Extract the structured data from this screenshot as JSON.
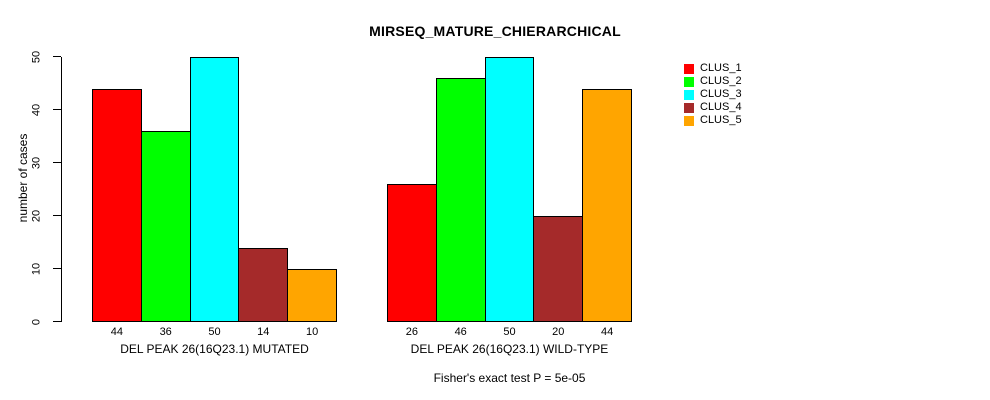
{
  "chart_data": {
    "type": "bar",
    "title": "MIRSEQ_MATURE_CHIERARCHICAL",
    "ylabel": "number of cases",
    "xlabel": "",
    "ylim": [
      0,
      50
    ],
    "yticks": [
      0,
      10,
      20,
      30,
      40,
      50
    ],
    "grid": false,
    "legend_position": "top-right",
    "bar_value_labels": true,
    "categories": [
      "DEL PEAK 26(16Q23.1) MUTATED",
      "DEL PEAK 26(16Q23.1) WILD-TYPE"
    ],
    "series": [
      {
        "name": "CLUS_1",
        "color": "#FF0000",
        "values": [
          44,
          26
        ]
      },
      {
        "name": "CLUS_2",
        "color": "#00FF00",
        "values": [
          36,
          46
        ]
      },
      {
        "name": "CLUS_3",
        "color": "#00FFFF",
        "values": [
          50,
          50
        ]
      },
      {
        "name": "CLUS_4",
        "color": "#A52A2A",
        "values": [
          14,
          20
        ]
      },
      {
        "name": "CLUS_5",
        "color": "#FFA500",
        "values": [
          10,
          44
        ]
      }
    ],
    "annotation": "Fisher's exact test P = 5e-05"
  },
  "colors": {
    "background": "#FFFFFF",
    "axis": "#000000",
    "bar_border": "#000000",
    "text": "#000000"
  }
}
